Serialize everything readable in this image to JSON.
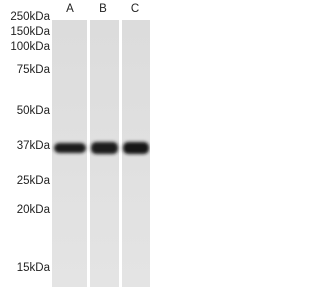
{
  "markers": [
    "250kDa",
    "150kDa",
    "100kDa",
    "75kDa",
    "50kDa",
    "37kDa",
    "25kDa",
    "20kDa",
    "15kDa"
  ],
  "lanes": [
    "A",
    "B",
    "C"
  ]
}
